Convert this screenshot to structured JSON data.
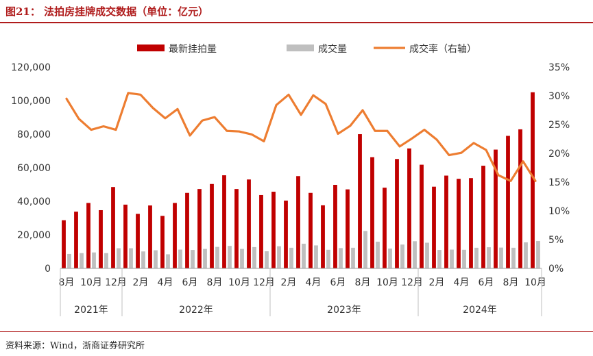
{
  "header": {
    "title": "图21：  法拍房挂牌成交数据（单位：亿元）"
  },
  "footer": {
    "source": "资料来源：Wind，浙商证券研究所"
  },
  "colors": {
    "listing": "#c00000",
    "deal": "#bfbfbf",
    "rate": "#ed7d31",
    "accent": "#b01c1c"
  },
  "chart_data": {
    "type": "bar",
    "legend_position": "top",
    "grid": false,
    "x": [
      "2021-08",
      "2021-09",
      "2021-10",
      "2021-11",
      "2021-12",
      "2022-01",
      "2022-02",
      "2022-03",
      "2022-04",
      "2022-05",
      "2022-06",
      "2022-07",
      "2022-08",
      "2022-09",
      "2022-10",
      "2022-11",
      "2022-12",
      "2023-01",
      "2023-02",
      "2023-03",
      "2023-04",
      "2023-05",
      "2023-06",
      "2023-07",
      "2023-08",
      "2023-09",
      "2023-10",
      "2023-11",
      "2023-12",
      "2024-01",
      "2024-02",
      "2024-03",
      "2024-04",
      "2024-05",
      "2024-06",
      "2024-07",
      "2024-08",
      "2024-09",
      "2024-10"
    ],
    "tick_labels": [
      "8月",
      "",
      "10月",
      "",
      "12月",
      "",
      "2月",
      "",
      "4月",
      "",
      "6月",
      "",
      "8月",
      "",
      "10月",
      "",
      "12月",
      "",
      "2月",
      "",
      "4月",
      "",
      "6月",
      "",
      "8月",
      "",
      "10月",
      "",
      "12月",
      "",
      "2月",
      "",
      "4月",
      "",
      "6月",
      "",
      "8月",
      "",
      "10月"
    ],
    "year_labels": [
      {
        "label": "2021年",
        "from": 0,
        "to": 4
      },
      {
        "label": "2022年",
        "from": 5,
        "to": 16
      },
      {
        "label": "2023年",
        "from": 17,
        "to": 28
      },
      {
        "label": "2024年",
        "from": 29,
        "to": 38
      }
    ],
    "series": [
      {
        "name": "最新挂拍量",
        "type": "bar",
        "axis": "left",
        "values": [
          28700,
          33800,
          39000,
          34700,
          48500,
          38000,
          32500,
          37500,
          31300,
          39000,
          45000,
          47300,
          50300,
          55500,
          47300,
          53000,
          43700,
          45700,
          40400,
          55000,
          45000,
          37600,
          49800,
          47100,
          80000,
          66300,
          48100,
          65200,
          71500,
          61800,
          48700,
          55300,
          53400,
          53800,
          61200,
          70800,
          79000,
          82900,
          105000
        ]
      },
      {
        "name": "成交量",
        "type": "bar",
        "axis": "left",
        "values": [
          8600,
          9100,
          9500,
          9100,
          12000,
          12000,
          10100,
          10800,
          8400,
          11200,
          11000,
          11600,
          12800,
          13400,
          11600,
          12700,
          10200,
          13200,
          12300,
          14700,
          13700,
          11100,
          12100,
          12300,
          22300,
          15900,
          11800,
          14200,
          16200,
          15300,
          11000,
          11200,
          11100,
          12300,
          12600,
          12400,
          12300,
          15500,
          16300
        ]
      },
      {
        "name": "成交率（右轴）",
        "type": "line",
        "axis": "right",
        "values": [
          29.5,
          26.0,
          24.1,
          24.7,
          24.1,
          30.5,
          30.2,
          27.9,
          26.1,
          27.7,
          23.1,
          25.7,
          26.3,
          23.9,
          23.8,
          23.3,
          22.1,
          28.4,
          30.2,
          26.7,
          30.1,
          28.6,
          23.4,
          24.8,
          27.5,
          23.9,
          23.9,
          21.2,
          22.6,
          24.1,
          22.4,
          19.7,
          20.1,
          21.8,
          20.6,
          16.2,
          15.2,
          18.6,
          15.2
        ]
      }
    ],
    "y_left": {
      "min": 0,
      "max": 120000,
      "ticks": [
        "0",
        "20,000",
        "40,000",
        "60,000",
        "80,000",
        "100,000",
        "120,000"
      ]
    },
    "y_right": {
      "min": 0,
      "max": 35,
      "ticks": [
        "0%",
        "5%",
        "10%",
        "15%",
        "20%",
        "25%",
        "30%",
        "35%"
      ]
    }
  }
}
